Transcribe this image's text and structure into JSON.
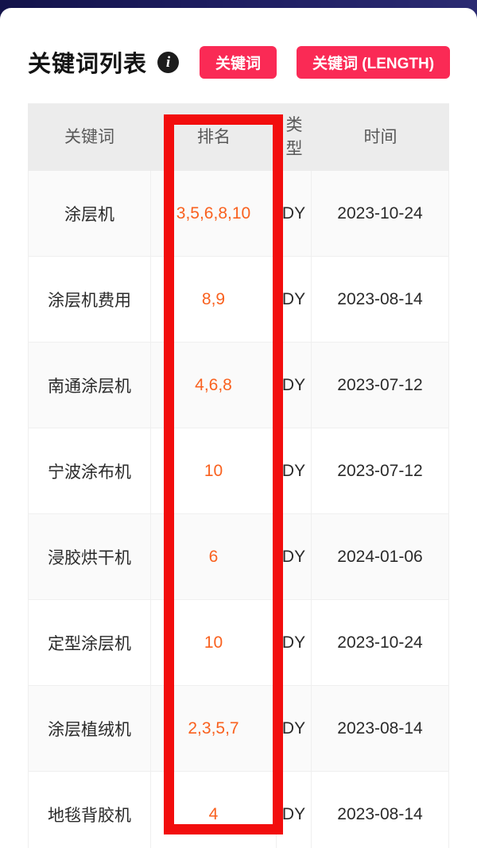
{
  "statusbar": {
    "bg_color": "#1d1d60"
  },
  "header": {
    "title": "关键词列表",
    "info_icon": "i",
    "accent_color": "#fa2a55",
    "buttons": [
      {
        "label": "关键词"
      },
      {
        "label": "关键词 (LENGTH)"
      }
    ]
  },
  "table": {
    "columns": [
      "关键词",
      "排名",
      "类型",
      "时间"
    ],
    "rank_color": "#f9611f",
    "rows": [
      {
        "keyword": "涂层机",
        "rank": "3,5,6,8,10",
        "type": "DY",
        "date": "2023-10-24"
      },
      {
        "keyword": "涂层机费用",
        "rank": "8,9",
        "type": "DY",
        "date": "2023-08-14"
      },
      {
        "keyword": "南通涂层机",
        "rank": "4,6,8",
        "type": "DY",
        "date": "2023-07-12"
      },
      {
        "keyword": "宁波涂布机",
        "rank": "10",
        "type": "DY",
        "date": "2023-07-12"
      },
      {
        "keyword": "浸胶烘干机",
        "rank": "6",
        "type": "DY",
        "date": "2024-01-06"
      },
      {
        "keyword": "定型涂层机",
        "rank": "10",
        "type": "DY",
        "date": "2023-10-24"
      },
      {
        "keyword": "涂层植绒机",
        "rank": "2,3,5,7",
        "type": "DY",
        "date": "2023-08-14"
      },
      {
        "keyword": "地毯背胶机",
        "rank": "4",
        "type": "DY",
        "date": "2023-08-14"
      }
    ]
  },
  "annotation": {
    "highlight_color": "#f20d0d",
    "highlighted_column": "排名"
  }
}
